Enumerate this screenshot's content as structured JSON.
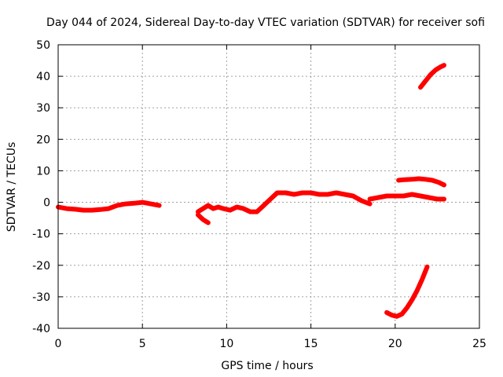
{
  "chart_data": {
    "type": "line",
    "title": "Day 044 of 2024, Sidereal Day-to-day VTEC variation (SDTVAR) for receiver sofi",
    "xlabel": "GPS time / hours",
    "ylabel": "SDTVAR / TECUs",
    "xlim": [
      0,
      25
    ],
    "ylim": [
      -40,
      50
    ],
    "xticks": [
      0,
      5,
      10,
      15,
      20,
      25
    ],
    "yticks": [
      -40,
      -30,
      -20,
      -10,
      0,
      10,
      20,
      30,
      40,
      50
    ],
    "xtick_labels": [
      "0",
      "5",
      "10",
      "15",
      "20",
      "25"
    ],
    "ytick_labels": [
      "-40",
      "-30",
      "-20",
      "-10",
      "0",
      "10",
      "20",
      "30",
      "40",
      "50"
    ],
    "grid": true,
    "series_color": "#ff0000",
    "series": [
      {
        "name": "segment-1",
        "x": [
          0,
          0.5,
          1,
          1.5,
          2,
          2.5,
          3,
          3.5,
          4,
          4.5,
          5,
          5.5,
          6
        ],
        "y": [
          -1.5,
          -2,
          -2.2,
          -2.5,
          -2.5,
          -2.3,
          -2,
          -1,
          -0.5,
          -0.3,
          0,
          -0.5,
          -1
        ]
      },
      {
        "name": "segment-2",
        "x": [
          8.3,
          8.6,
          8.9,
          9.2,
          9.5,
          9.8,
          10.2,
          10.6,
          11,
          11.4,
          11.8,
          12.2,
          12.6,
          13,
          13.5,
          14,
          14.5,
          15,
          15.5,
          16,
          16.5,
          17,
          17.5,
          18,
          18.5
        ],
        "y": [
          -3,
          -2,
          -1,
          -2,
          -1.5,
          -2,
          -2.5,
          -1.5,
          -2,
          -3,
          -3,
          -1,
          1,
          3,
          3,
          2.5,
          3,
          3,
          2.5,
          2.5,
          3,
          2.5,
          2,
          0.5,
          -0.5
        ]
      },
      {
        "name": "segment-2-tail",
        "x": [
          8.3,
          8.6,
          8.9
        ],
        "y": [
          -4,
          -5.5,
          -6.5
        ]
      },
      {
        "name": "segment-3",
        "x": [
          18.5,
          19,
          19.5,
          20,
          20.5,
          21,
          21.5,
          22,
          22.5,
          22.9
        ],
        "y": [
          1,
          1.5,
          2,
          2,
          2,
          2.5,
          2,
          1.5,
          1,
          1
        ]
      },
      {
        "name": "segment-4",
        "x": [
          20.2,
          20.6,
          21,
          21.4,
          21.8,
          22.2,
          22.6,
          22.9
        ],
        "y": [
          7,
          7.2,
          7.3,
          7.5,
          7.3,
          7,
          6.3,
          5.5
        ]
      },
      {
        "name": "segment-5",
        "x": [
          21.5,
          21.8,
          22.1,
          22.4,
          22.7,
          22.9
        ],
        "y": [
          36.5,
          38.5,
          40.5,
          42,
          43,
          43.5
        ]
      },
      {
        "name": "segment-6",
        "x": [
          19.5,
          19.8,
          20.1,
          20.4,
          20.7,
          21,
          21.3,
          21.6,
          21.9
        ],
        "y": [
          -35,
          -35.8,
          -36.2,
          -35.5,
          -33.5,
          -31,
          -28,
          -24.5,
          -20.5
        ]
      }
    ]
  }
}
